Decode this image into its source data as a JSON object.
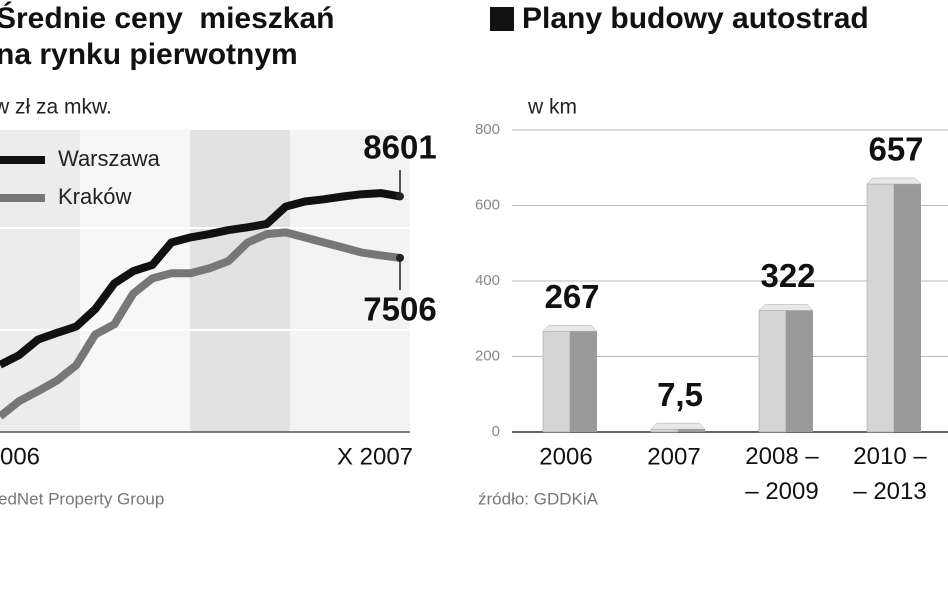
{
  "chart_data": [
    {
      "type": "line",
      "title": [
        "Średnie ceny  mieszkań",
        "na rynku pierwotnym"
      ],
      "unit": "w zł za mkw.",
      "source": "edNet Property Group",
      "categories": [
        "006",
        null,
        null,
        null,
        null,
        null,
        null,
        null,
        null,
        null,
        null,
        null,
        null,
        null,
        null,
        null,
        null,
        null,
        null,
        null,
        null,
        "X 2007"
      ],
      "series": [
        {
          "name": "Warszawa",
          "color": "#111111",
          "values": [
            5600,
            5770,
            6050,
            6170,
            6280,
            6590,
            7050,
            7270,
            7380,
            7780,
            7870,
            7930,
            8000,
            8050,
            8110,
            8420,
            8510,
            8550,
            8600,
            8640,
            8660,
            8601
          ]
        },
        {
          "name": "Kraków",
          "color": "#777777",
          "values": [
            4680,
            4950,
            5130,
            5320,
            5590,
            6140,
            6320,
            6870,
            7140,
            7230,
            7230,
            7320,
            7450,
            7780,
            7930,
            7960,
            7870,
            7780,
            7690,
            7600,
            7550,
            7506
          ]
        }
      ]
    },
    {
      "type": "bar",
      "title": "Plany budowy autostrad",
      "unit": "w km",
      "source": "źródło: GDDKiA",
      "categories": [
        "2006",
        "2007",
        "2008 –\n– 2009",
        "2010 –\n– 2013"
      ],
      "values": [
        267,
        7.5,
        322,
        657
      ],
      "value_labels": [
        "267",
        "7,5",
        "322",
        "657"
      ],
      "colors": [
        "#d4d4d4",
        "#9a9a9a"
      ],
      "ylim": [
        0,
        800
      ],
      "yticks": [
        0,
        200,
        400,
        600,
        800
      ],
      "grid": true
    }
  ]
}
